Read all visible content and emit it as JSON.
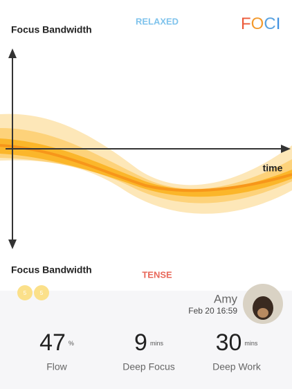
{
  "header": {
    "left_label": "Focus Bandwidth",
    "state": "RELAXED",
    "logo": [
      "F",
      "O",
      "C",
      "I"
    ]
  },
  "graph": {
    "x_label": "time",
    "bottom_label": "Focus Bandwidth",
    "bottom_state": "TENSE",
    "coins": [
      "5",
      "5"
    ]
  },
  "profile": {
    "name": "Amy",
    "timestamp": "Feb 20 16:59"
  },
  "stats": [
    {
      "value": "47",
      "unit": "%",
      "label": "Flow"
    },
    {
      "value": "9",
      "unit": "mins",
      "label": "Deep Focus"
    },
    {
      "value": "30",
      "unit": "mins",
      "label": "Deep Work"
    }
  ]
}
